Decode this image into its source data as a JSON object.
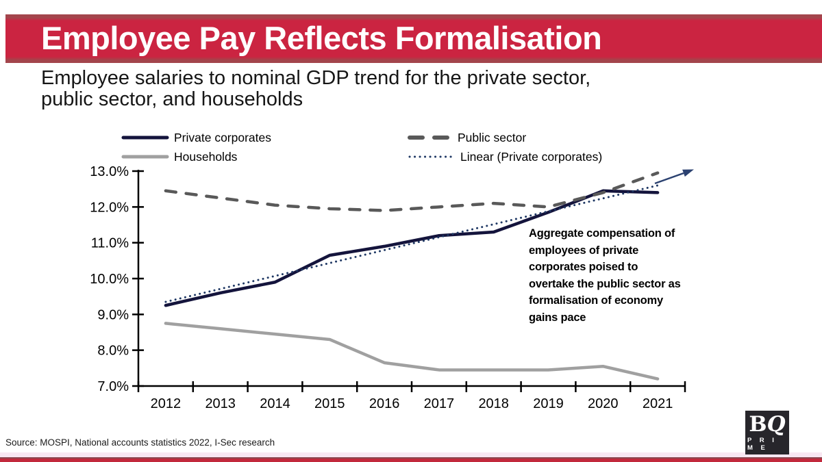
{
  "banner": {
    "title": "Employee Pay Reflects Formalisation"
  },
  "subtitle": "Employee salaries to nominal GDP trend for the private sector,\npublic sector, and households",
  "source": "Source: MOSPI, National accounts statistics 2022, I-Sec research",
  "logo": {
    "b": "B",
    "q": "Q",
    "prime": "P R I M E"
  },
  "colors": {
    "banner_red": "#cb2441",
    "banner_edge": "#a3454c",
    "bottom_pink": "#f8e7f2",
    "bottom_maroon": "#8a4750",
    "bottom_red": "#c2293c",
    "logo_bg": "#27262b",
    "axis": "#000000",
    "arrow": "#2b4170"
  },
  "chart_data": {
    "type": "line",
    "title": "",
    "xlabel": "",
    "ylabel": "",
    "x": [
      "2012",
      "2013",
      "2014",
      "2015",
      "2016",
      "2017",
      "2018",
      "2019",
      "2020",
      "2021"
    ],
    "ylim": [
      7,
      13
    ],
    "ytick_step": 1,
    "ytick_format": "percent_one_decimal",
    "grid": false,
    "legend_position": "top",
    "series": [
      {
        "name": "Private corporates",
        "style": "solid",
        "width": 4.5,
        "color": "#14143c",
        "values": [
          9.25,
          9.6,
          9.9,
          10.65,
          10.9,
          11.2,
          11.3,
          11.85,
          12.45,
          12.4
        ]
      },
      {
        "name": "Public sector",
        "style": "dashed",
        "width": 4.5,
        "color": "#595959",
        "values": [
          12.45,
          12.25,
          12.05,
          11.95,
          11.9,
          12.0,
          12.1,
          12.0,
          12.4,
          12.95
        ]
      },
      {
        "name": "Households",
        "style": "solid",
        "width": 4.5,
        "color": "#a0a0a0",
        "values": [
          8.75,
          8.6,
          8.45,
          8.3,
          7.65,
          7.45,
          7.45,
          7.45,
          7.55,
          7.2
        ]
      },
      {
        "name": "Linear (Private corporates)",
        "style": "dotted-trend",
        "width": 3,
        "color": "#1f3864",
        "trend_start": 9.35,
        "trend_end": 12.6
      }
    ],
    "annotation": "Aggregate compensation of\nemployees of private\ncorporates poised to\novertake the public sector as\nformalisation of economy\ngains pace",
    "arrow": {
      "present": true,
      "direction": "up-right"
    }
  }
}
